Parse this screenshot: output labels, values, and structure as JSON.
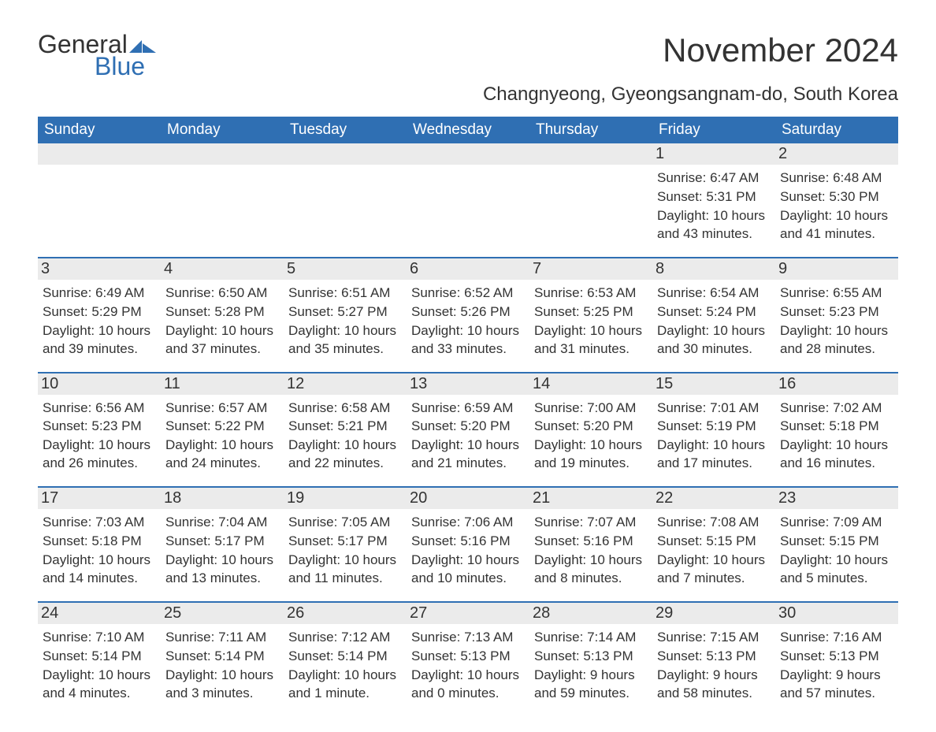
{
  "logo": {
    "text1": "General",
    "text2": "Blue",
    "flag_color": "#2f6fb3"
  },
  "title": "November 2024",
  "location": "Changnyeong, Gyeongsangnam-do, South Korea",
  "colors": {
    "header_bg": "#2f6fb3",
    "header_text": "#ffffff",
    "day_strip_bg": "#ebebeb",
    "day_strip_border": "#2f6fb3",
    "body_text": "#333333",
    "page_bg": "#ffffff"
  },
  "typography": {
    "title_fontsize": 42,
    "location_fontsize": 24,
    "weekday_fontsize": 19,
    "daynum_fontsize": 20,
    "body_fontsize": 17,
    "logo_fontsize": 32
  },
  "weekdays": [
    "Sunday",
    "Monday",
    "Tuesday",
    "Wednesday",
    "Thursday",
    "Friday",
    "Saturday"
  ],
  "labels": {
    "sunrise": "Sunrise:",
    "sunset": "Sunset:",
    "daylight": "Daylight:"
  },
  "weeks": [
    [
      null,
      null,
      null,
      null,
      null,
      {
        "n": "1",
        "sunrise": "6:47 AM",
        "sunset": "5:31 PM",
        "daylight": "10 hours and 43 minutes."
      },
      {
        "n": "2",
        "sunrise": "6:48 AM",
        "sunset": "5:30 PM",
        "daylight": "10 hours and 41 minutes."
      }
    ],
    [
      {
        "n": "3",
        "sunrise": "6:49 AM",
        "sunset": "5:29 PM",
        "daylight": "10 hours and 39 minutes."
      },
      {
        "n": "4",
        "sunrise": "6:50 AM",
        "sunset": "5:28 PM",
        "daylight": "10 hours and 37 minutes."
      },
      {
        "n": "5",
        "sunrise": "6:51 AM",
        "sunset": "5:27 PM",
        "daylight": "10 hours and 35 minutes."
      },
      {
        "n": "6",
        "sunrise": "6:52 AM",
        "sunset": "5:26 PM",
        "daylight": "10 hours and 33 minutes."
      },
      {
        "n": "7",
        "sunrise": "6:53 AM",
        "sunset": "5:25 PM",
        "daylight": "10 hours and 31 minutes."
      },
      {
        "n": "8",
        "sunrise": "6:54 AM",
        "sunset": "5:24 PM",
        "daylight": "10 hours and 30 minutes."
      },
      {
        "n": "9",
        "sunrise": "6:55 AM",
        "sunset": "5:23 PM",
        "daylight": "10 hours and 28 minutes."
      }
    ],
    [
      {
        "n": "10",
        "sunrise": "6:56 AM",
        "sunset": "5:23 PM",
        "daylight": "10 hours and 26 minutes."
      },
      {
        "n": "11",
        "sunrise": "6:57 AM",
        "sunset": "5:22 PM",
        "daylight": "10 hours and 24 minutes."
      },
      {
        "n": "12",
        "sunrise": "6:58 AM",
        "sunset": "5:21 PM",
        "daylight": "10 hours and 22 minutes."
      },
      {
        "n": "13",
        "sunrise": "6:59 AM",
        "sunset": "5:20 PM",
        "daylight": "10 hours and 21 minutes."
      },
      {
        "n": "14",
        "sunrise": "7:00 AM",
        "sunset": "5:20 PM",
        "daylight": "10 hours and 19 minutes."
      },
      {
        "n": "15",
        "sunrise": "7:01 AM",
        "sunset": "5:19 PM",
        "daylight": "10 hours and 17 minutes."
      },
      {
        "n": "16",
        "sunrise": "7:02 AM",
        "sunset": "5:18 PM",
        "daylight": "10 hours and 16 minutes."
      }
    ],
    [
      {
        "n": "17",
        "sunrise": "7:03 AM",
        "sunset": "5:18 PM",
        "daylight": "10 hours and 14 minutes."
      },
      {
        "n": "18",
        "sunrise": "7:04 AM",
        "sunset": "5:17 PM",
        "daylight": "10 hours and 13 minutes."
      },
      {
        "n": "19",
        "sunrise": "7:05 AM",
        "sunset": "5:17 PM",
        "daylight": "10 hours and 11 minutes."
      },
      {
        "n": "20",
        "sunrise": "7:06 AM",
        "sunset": "5:16 PM",
        "daylight": "10 hours and 10 minutes."
      },
      {
        "n": "21",
        "sunrise": "7:07 AM",
        "sunset": "5:16 PM",
        "daylight": "10 hours and 8 minutes."
      },
      {
        "n": "22",
        "sunrise": "7:08 AM",
        "sunset": "5:15 PM",
        "daylight": "10 hours and 7 minutes."
      },
      {
        "n": "23",
        "sunrise": "7:09 AM",
        "sunset": "5:15 PM",
        "daylight": "10 hours and 5 minutes."
      }
    ],
    [
      {
        "n": "24",
        "sunrise": "7:10 AM",
        "sunset": "5:14 PM",
        "daylight": "10 hours and 4 minutes."
      },
      {
        "n": "25",
        "sunrise": "7:11 AM",
        "sunset": "5:14 PM",
        "daylight": "10 hours and 3 minutes."
      },
      {
        "n": "26",
        "sunrise": "7:12 AM",
        "sunset": "5:14 PM",
        "daylight": "10 hours and 1 minute."
      },
      {
        "n": "27",
        "sunrise": "7:13 AM",
        "sunset": "5:13 PM",
        "daylight": "10 hours and 0 minutes."
      },
      {
        "n": "28",
        "sunrise": "7:14 AM",
        "sunset": "5:13 PM",
        "daylight": "9 hours and 59 minutes."
      },
      {
        "n": "29",
        "sunrise": "7:15 AM",
        "sunset": "5:13 PM",
        "daylight": "9 hours and 58 minutes."
      },
      {
        "n": "30",
        "sunrise": "7:16 AM",
        "sunset": "5:13 PM",
        "daylight": "9 hours and 57 minutes."
      }
    ]
  ]
}
